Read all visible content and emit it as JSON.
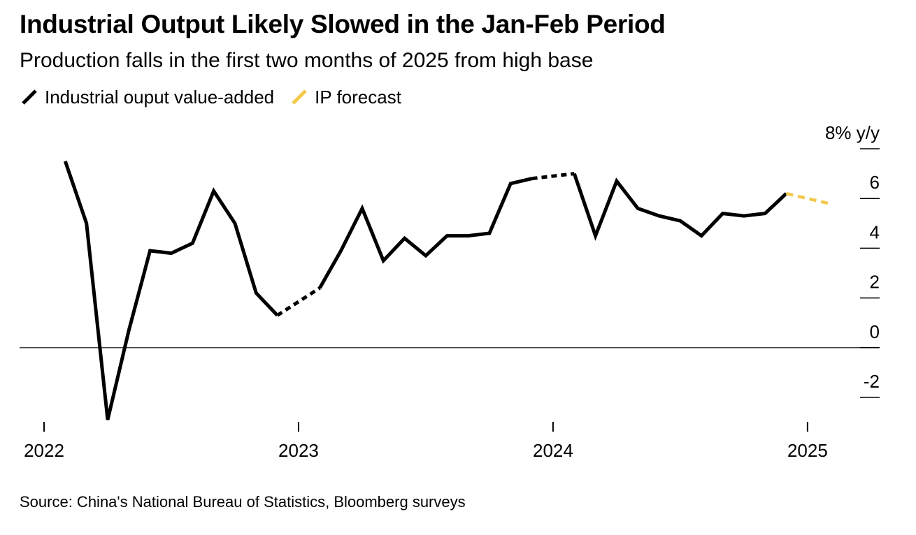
{
  "title": "Industrial Output Likely Slowed in the Jan-Feb Period",
  "subtitle": "Production falls in the first two months of 2025 from high base",
  "source": "Source: China's National Bureau of Statistics, Bloomberg surveys",
  "colors": {
    "actual": "#000000",
    "forecast": "#f2c94c",
    "axis": "#000000"
  },
  "chart_data": {
    "type": "line",
    "ylim": [
      -3,
      8
    ],
    "y_unit_label": "8% y/y",
    "y_ticks": [
      {
        "value": 8,
        "label": "8% y/y"
      },
      {
        "value": 6,
        "label": "6"
      },
      {
        "value": 4,
        "label": "4"
      },
      {
        "value": 2,
        "label": "2"
      },
      {
        "value": 0,
        "label": "0"
      },
      {
        "value": -2,
        "label": "-2"
      }
    ],
    "x_ticks": [
      {
        "date": "2022-01",
        "label": "2022"
      },
      {
        "date": "2023-01",
        "label": "2023"
      },
      {
        "date": "2024-01",
        "label": "2024"
      },
      {
        "date": "2025-01",
        "label": "2025"
      }
    ],
    "xlim": [
      "2022-01",
      "2025-05"
    ],
    "legend_position": "top-left",
    "series": [
      {
        "name": "Industrial ouput value-added",
        "style": "solid",
        "points": [
          {
            "x": "2022-02",
            "y": 7.5
          },
          {
            "x": "2022-03",
            "y": 5.0
          },
          {
            "x": "2022-04",
            "y": -2.9
          },
          {
            "x": "2022-05",
            "y": 0.7
          },
          {
            "x": "2022-06",
            "y": 3.9
          },
          {
            "x": "2022-07",
            "y": 3.8
          },
          {
            "x": "2022-08",
            "y": 4.2
          },
          {
            "x": "2022-09",
            "y": 6.3
          },
          {
            "x": "2022-10",
            "y": 5.0
          },
          {
            "x": "2022-11",
            "y": 2.2
          },
          {
            "x": "2022-12",
            "y": 1.3
          }
        ]
      },
      {
        "name": "Industrial ouput value-added",
        "style": "dotted",
        "points": [
          {
            "x": "2022-12",
            "y": 1.3
          },
          {
            "x": "2023-02",
            "y": 2.4
          }
        ]
      },
      {
        "name": "Industrial ouput value-added",
        "style": "solid",
        "points": [
          {
            "x": "2023-02",
            "y": 2.4
          },
          {
            "x": "2023-03",
            "y": 3.9
          },
          {
            "x": "2023-04",
            "y": 5.6
          },
          {
            "x": "2023-05",
            "y": 3.5
          },
          {
            "x": "2023-06",
            "y": 4.4
          },
          {
            "x": "2023-07",
            "y": 3.7
          },
          {
            "x": "2023-08",
            "y": 4.5
          },
          {
            "x": "2023-09",
            "y": 4.5
          },
          {
            "x": "2023-10",
            "y": 4.6
          },
          {
            "x": "2023-11",
            "y": 6.6
          },
          {
            "x": "2023-12",
            "y": 6.8
          }
        ]
      },
      {
        "name": "Industrial ouput value-added",
        "style": "dotted",
        "points": [
          {
            "x": "2023-12",
            "y": 6.8
          },
          {
            "x": "2024-02",
            "y": 7.0
          }
        ]
      },
      {
        "name": "Industrial ouput value-added",
        "style": "solid",
        "points": [
          {
            "x": "2024-02",
            "y": 7.0
          },
          {
            "x": "2024-03",
            "y": 4.5
          },
          {
            "x": "2024-04",
            "y": 6.7
          },
          {
            "x": "2024-05",
            "y": 5.6
          },
          {
            "x": "2024-06",
            "y": 5.3
          },
          {
            "x": "2024-07",
            "y": 5.1
          },
          {
            "x": "2024-08",
            "y": 4.5
          },
          {
            "x": "2024-09",
            "y": 5.4
          },
          {
            "x": "2024-10",
            "y": 5.3
          },
          {
            "x": "2024-11",
            "y": 5.4
          },
          {
            "x": "2024-12",
            "y": 6.2
          }
        ]
      },
      {
        "name": "IP forecast",
        "style": "dashed",
        "points": [
          {
            "x": "2024-12",
            "y": 6.2
          },
          {
            "x": "2025-02",
            "y": 5.8
          }
        ]
      }
    ],
    "legend": [
      {
        "label": "Industrial ouput value-added",
        "color": "#000000"
      },
      {
        "label": "IP forecast",
        "color": "#f2c94c"
      }
    ]
  }
}
